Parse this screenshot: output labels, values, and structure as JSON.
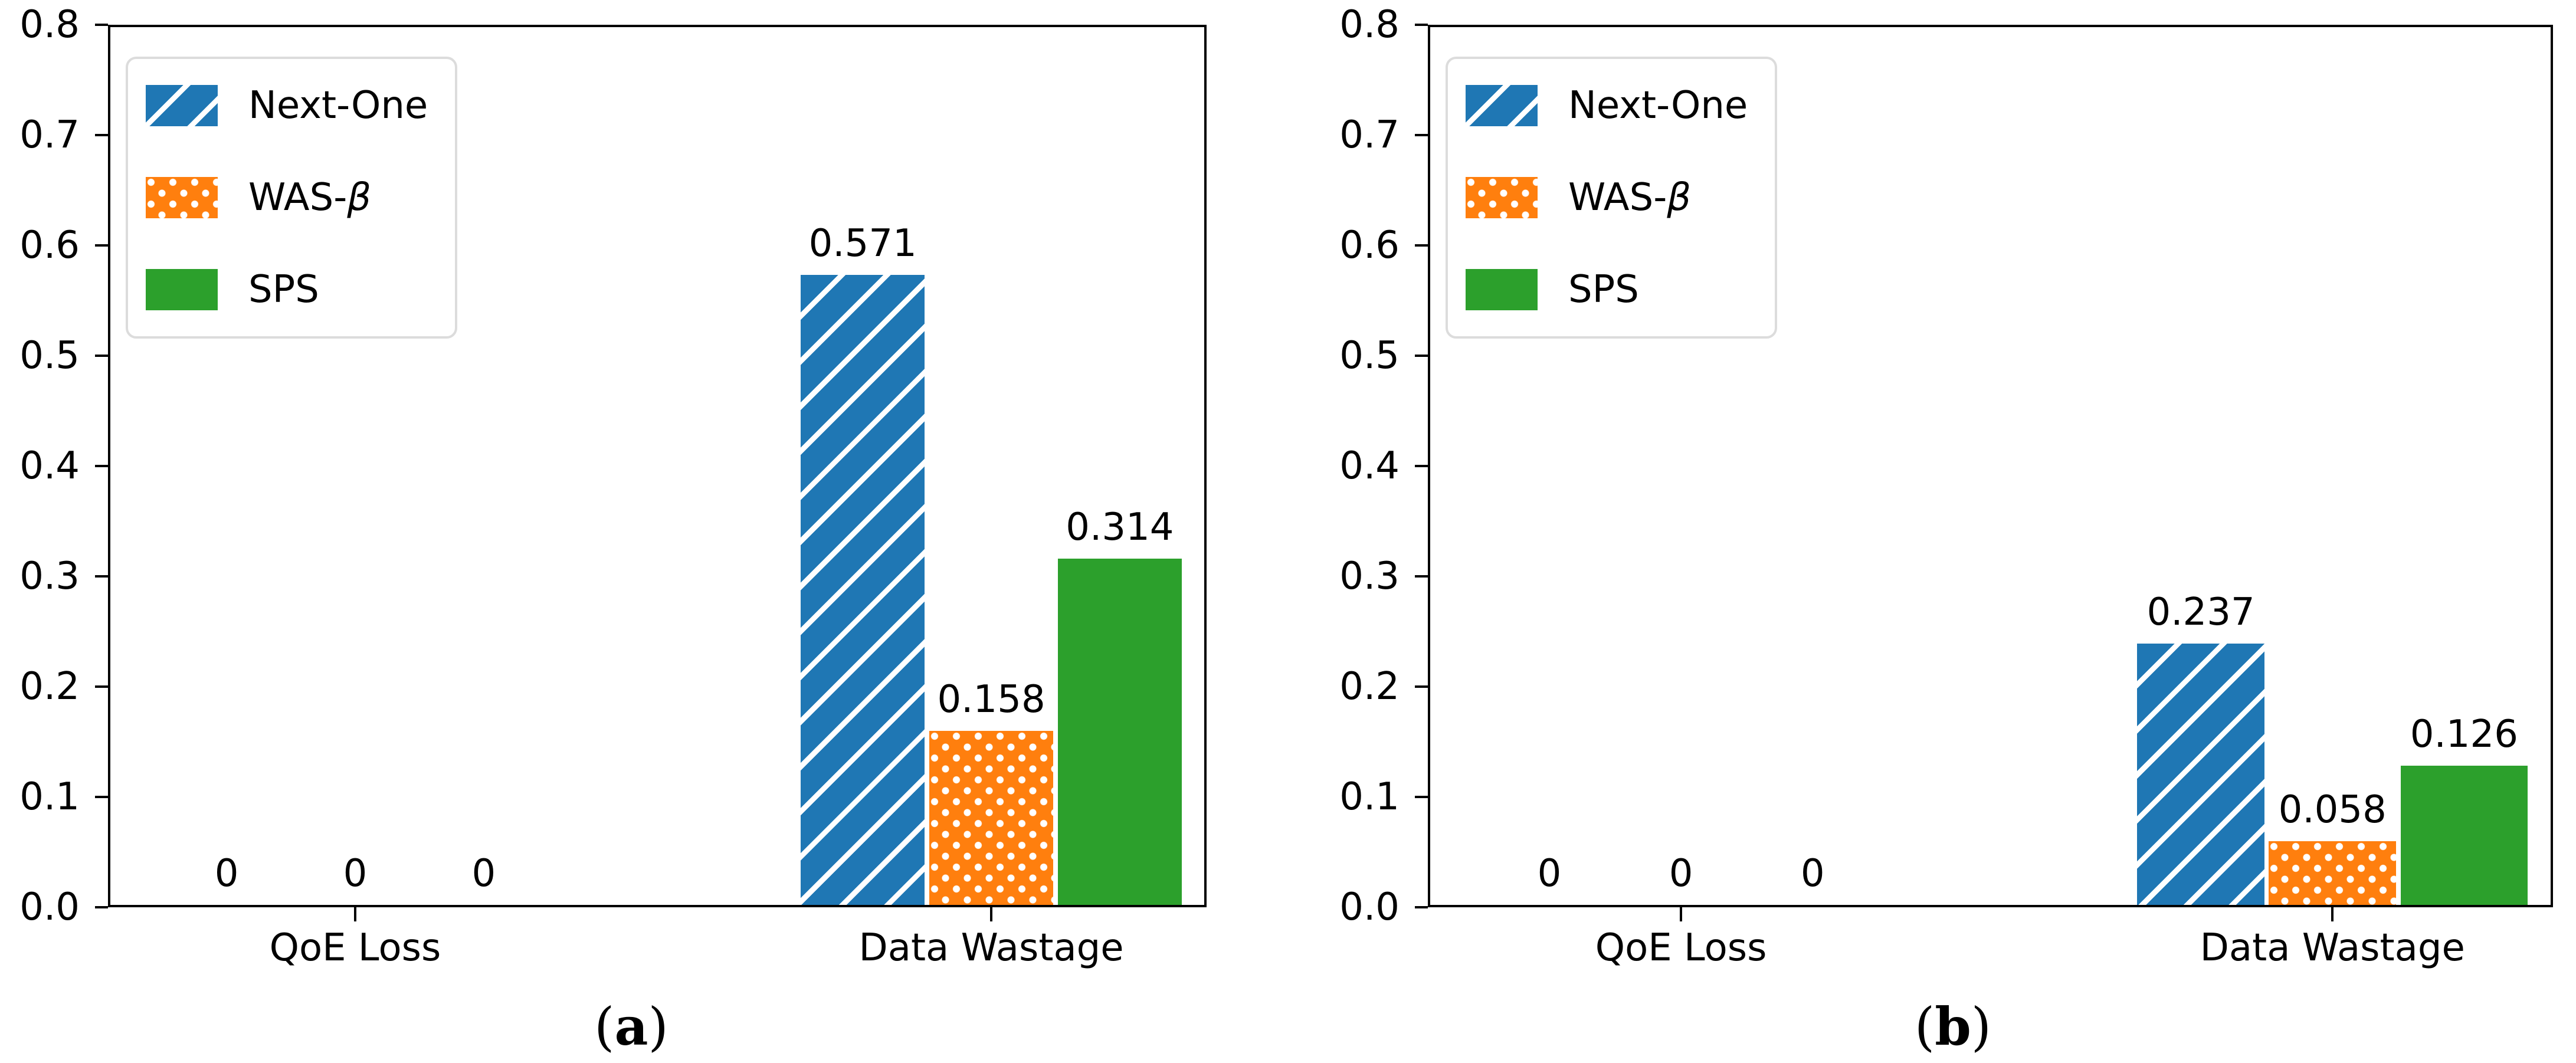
{
  "figure": {
    "background": "#ffffff",
    "text_color": "#000000",
    "legend_border_color": "#dcdcdc",
    "hatch_color": "#ffffff"
  },
  "chart_data": [
    {
      "type": "bar",
      "panel": "a",
      "caption": "(a)",
      "caption_letter": "a",
      "categories": [
        "QoE Loss",
        "Data Wastage"
      ],
      "ylim": [
        0.0,
        0.8
      ],
      "yticks": [
        "0.0",
        "0.1",
        "0.2",
        "0.3",
        "0.4",
        "0.5",
        "0.6",
        "0.7",
        "0.8"
      ],
      "grid": false,
      "legend_position": "upper left",
      "series": [
        {
          "name": "Next-One",
          "slug": "next-one",
          "color": "#1f77b4",
          "hatch": "/",
          "values": [
            0,
            0.571
          ],
          "value_labels": [
            "0",
            "0.571"
          ]
        },
        {
          "name": "WAS-β",
          "slug": "was-beta",
          "color": "#ff7f0e",
          "hatch": "o",
          "values": [
            0,
            0.158
          ],
          "value_labels": [
            "0",
            "0.158"
          ]
        },
        {
          "name": "SPS",
          "slug": "sps",
          "color": "#2ca02c",
          "hatch": "",
          "values": [
            0,
            0.314
          ],
          "value_labels": [
            "0",
            "0.314"
          ]
        }
      ]
    },
    {
      "type": "bar",
      "panel": "b",
      "caption": "(b)",
      "caption_letter": "b",
      "categories": [
        "QoE Loss",
        "Data Wastage"
      ],
      "ylim": [
        0.0,
        0.8
      ],
      "yticks": [
        "0.0",
        "0.1",
        "0.2",
        "0.3",
        "0.4",
        "0.5",
        "0.6",
        "0.7",
        "0.8"
      ],
      "grid": false,
      "legend_position": "upper left",
      "series": [
        {
          "name": "Next-One",
          "slug": "next-one",
          "color": "#1f77b4",
          "hatch": "/",
          "values": [
            0,
            0.237
          ],
          "value_labels": [
            "0",
            "0.237"
          ]
        },
        {
          "name": "WAS-β",
          "slug": "was-beta",
          "color": "#ff7f0e",
          "hatch": "o",
          "values": [
            0,
            0.058
          ],
          "value_labels": [
            "0",
            "0.058"
          ]
        },
        {
          "name": "SPS",
          "slug": "sps",
          "color": "#2ca02c",
          "hatch": "",
          "values": [
            0,
            0.126
          ],
          "value_labels": [
            "0",
            "0.126"
          ]
        }
      ]
    }
  ]
}
